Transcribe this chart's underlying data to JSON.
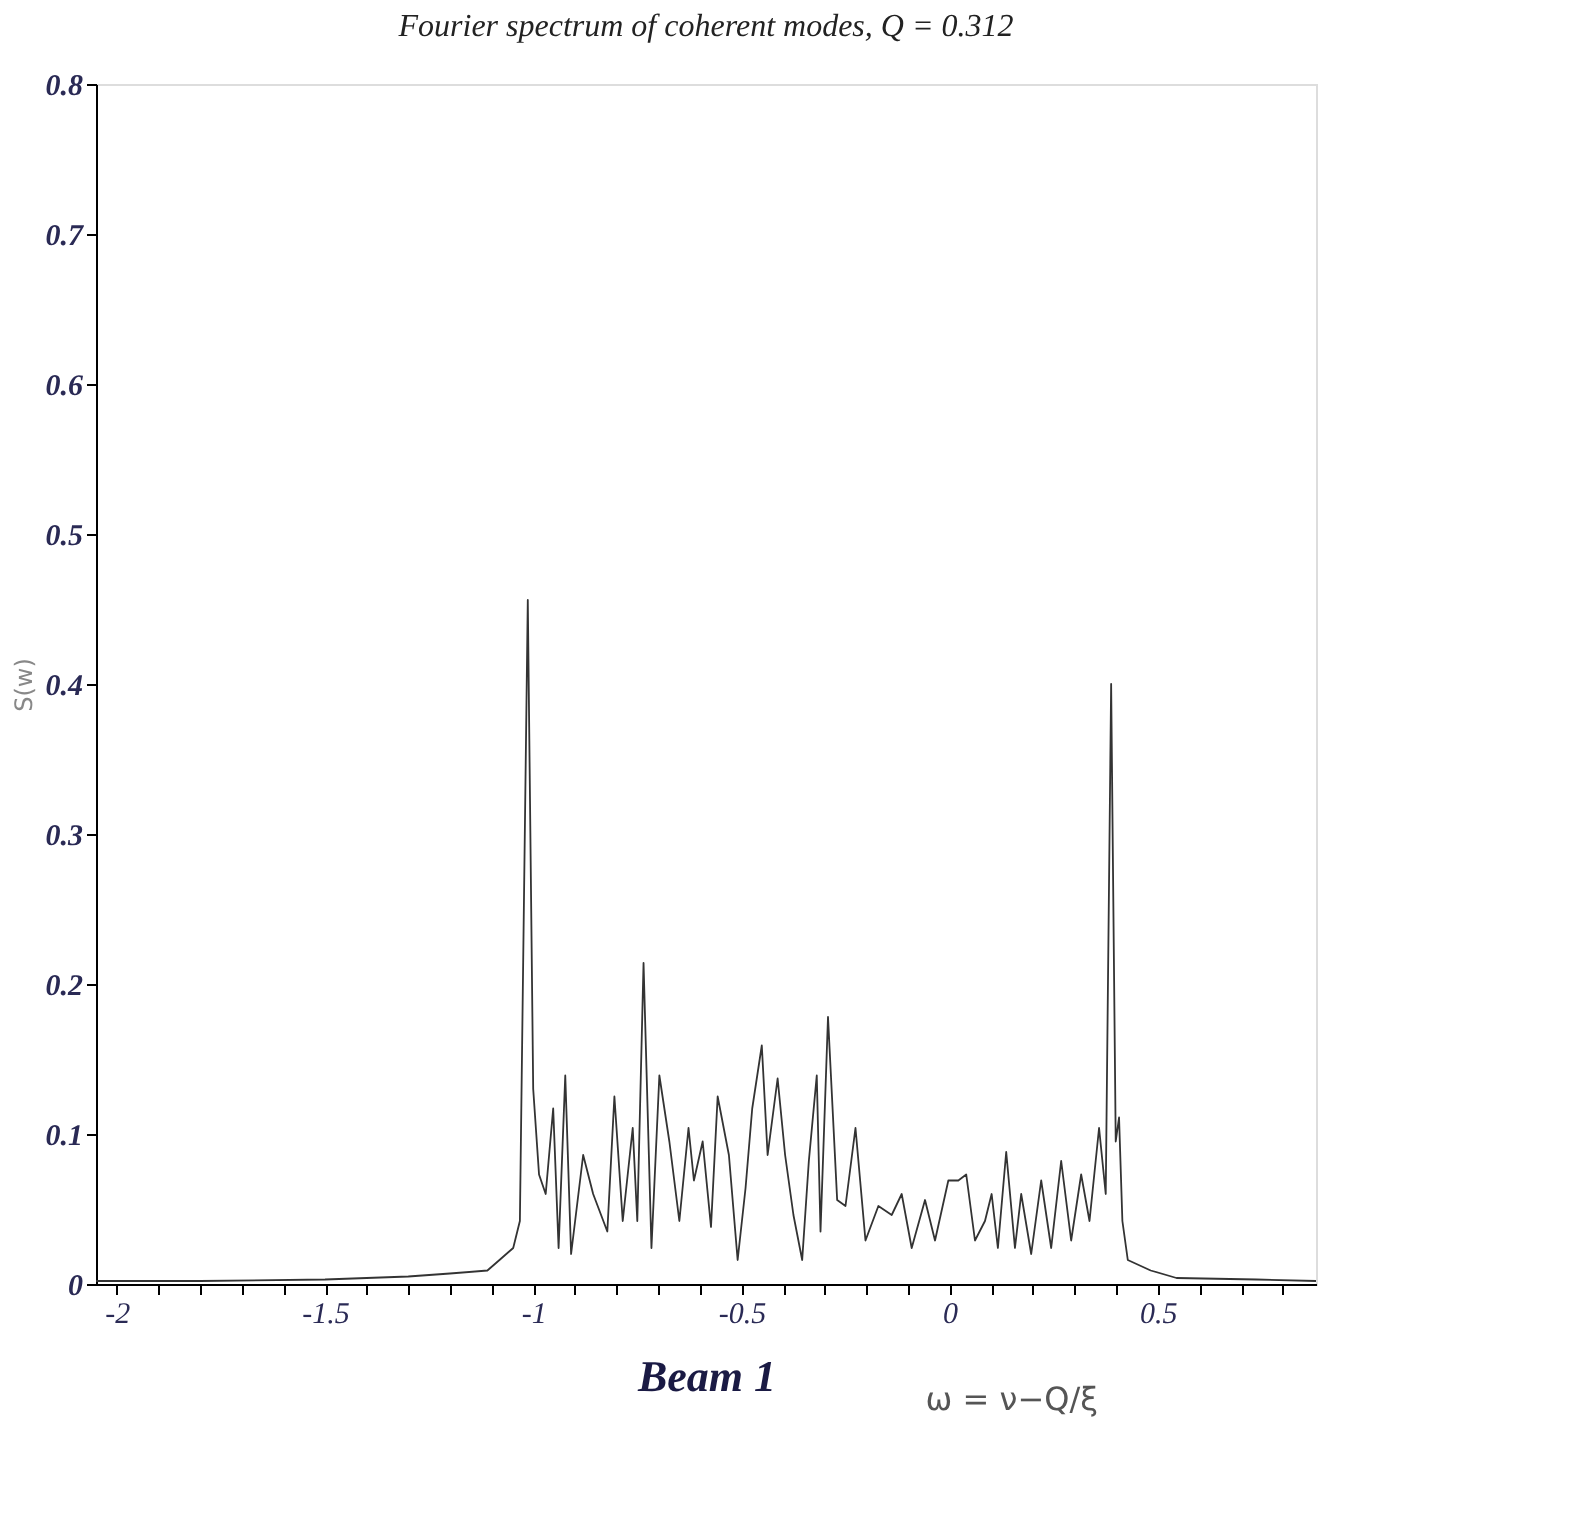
{
  "chart_data": {
    "type": "line",
    "title": "Fourier spectrum of coherent modes, Q = 0.312",
    "xlabel": "Beam 1",
    "ylabel": "S(w)",
    "annotations": [
      "ω = ν−Q/ξ"
    ],
    "series": [
      {
        "color": "#333333",
        "x": [
          -2.05,
          -1.8,
          -1.5,
          -1.3,
          -1.2,
          -1.11,
          -1.081,
          -1.048,
          -1.032,
          -1.013,
          -1.0,
          -0.986,
          -0.97,
          -0.952,
          -0.939,
          -0.923,
          -0.909,
          -0.88,
          -0.856,
          -0.822,
          -0.805,
          -0.785,
          -0.761,
          -0.75,
          -0.735,
          -0.716,
          -0.697,
          -0.673,
          -0.649,
          -0.627,
          -0.614,
          -0.593,
          -0.573,
          -0.557,
          -0.53,
          -0.509,
          -0.49,
          -0.474,
          -0.451,
          -0.437,
          -0.413,
          -0.395,
          -0.375,
          -0.354,
          -0.338,
          -0.319,
          -0.31,
          -0.292,
          -0.27,
          -0.25,
          -0.226,
          -0.202,
          -0.171,
          -0.139,
          -0.115,
          -0.091,
          -0.059,
          -0.035,
          -0.003,
          0.021,
          0.04,
          0.061,
          0.085,
          0.101,
          0.116,
          0.136,
          0.157,
          0.172,
          0.196,
          0.22,
          0.244,
          0.268,
          0.292,
          0.316,
          0.336,
          0.359,
          0.375,
          0.388,
          0.399,
          0.407,
          0.415,
          0.428,
          0.483,
          0.545,
          0.737,
          0.88
        ],
        "values": [
          0.002,
          0.002,
          0.003,
          0.005,
          0.007,
          0.009,
          0.016,
          0.024,
          0.042,
          0.456,
          0.13,
          0.073,
          0.06,
          0.117,
          0.024,
          0.139,
          0.02,
          0.086,
          0.06,
          0.035,
          0.125,
          0.042,
          0.104,
          0.042,
          0.214,
          0.024,
          0.139,
          0.095,
          0.042,
          0.104,
          0.069,
          0.095,
          0.038,
          0.125,
          0.086,
          0.016,
          0.064,
          0.117,
          0.159,
          0.086,
          0.137,
          0.086,
          0.046,
          0.016,
          0.082,
          0.139,
          0.035,
          0.178,
          0.056,
          0.052,
          0.104,
          0.029,
          0.052,
          0.046,
          0.06,
          0.024,
          0.056,
          0.029,
          0.069,
          0.069,
          0.073,
          0.029,
          0.042,
          0.06,
          0.024,
          0.088,
          0.024,
          0.06,
          0.02,
          0.069,
          0.024,
          0.082,
          0.029,
          0.073,
          0.042,
          0.104,
          0.06,
          0.4,
          0.095,
          0.111,
          0.042,
          0.016,
          0.009,
          0.004,
          0.003,
          0.002
        ]
      }
    ],
    "xlim": [
      -2.05,
      0.88
    ],
    "ylim": [
      0,
      0.8
    ],
    "xticks": [
      -2,
      {
        "value": -1.9,
        "label": null
      },
      {
        "value": -1.8,
        "label": null
      },
      {
        "value": -1.7,
        "label": null
      },
      {
        "value": -1.6,
        "label": null
      },
      -1.5,
      {
        "value": -1.4,
        "label": null
      },
      {
        "value": -1.3,
        "label": null
      },
      {
        "value": -1.2,
        "label": null
      },
      {
        "value": -1.1,
        "label": null
      },
      -1,
      {
        "value": -0.9,
        "label": null
      },
      {
        "value": -0.8,
        "label": null
      },
      {
        "value": -0.7,
        "label": null
      },
      {
        "value": -0.6,
        "label": null
      },
      -0.5,
      {
        "value": -0.4,
        "label": null
      },
      {
        "value": -0.3,
        "label": null
      },
      {
        "value": -0.2,
        "label": null
      },
      {
        "value": -0.1,
        "label": null
      },
      0,
      {
        "value": 0.1,
        "label": null
      },
      {
        "value": 0.2,
        "label": null
      },
      {
        "value": 0.3,
        "label": null
      },
      {
        "value": 0.4,
        "label": null
      },
      0.5,
      {
        "value": 0.6,
        "label": null
      },
      {
        "value": 0.7,
        "label": null
      },
      {
        "value": 0.8,
        "label": null
      }
    ],
    "yticks": [
      0,
      0.1,
      0.2,
      0.3,
      0.4,
      0.5,
      0.6,
      0.7,
      0.8
    ],
    "grid": false,
    "marker": "none",
    "line_style": "solid"
  }
}
